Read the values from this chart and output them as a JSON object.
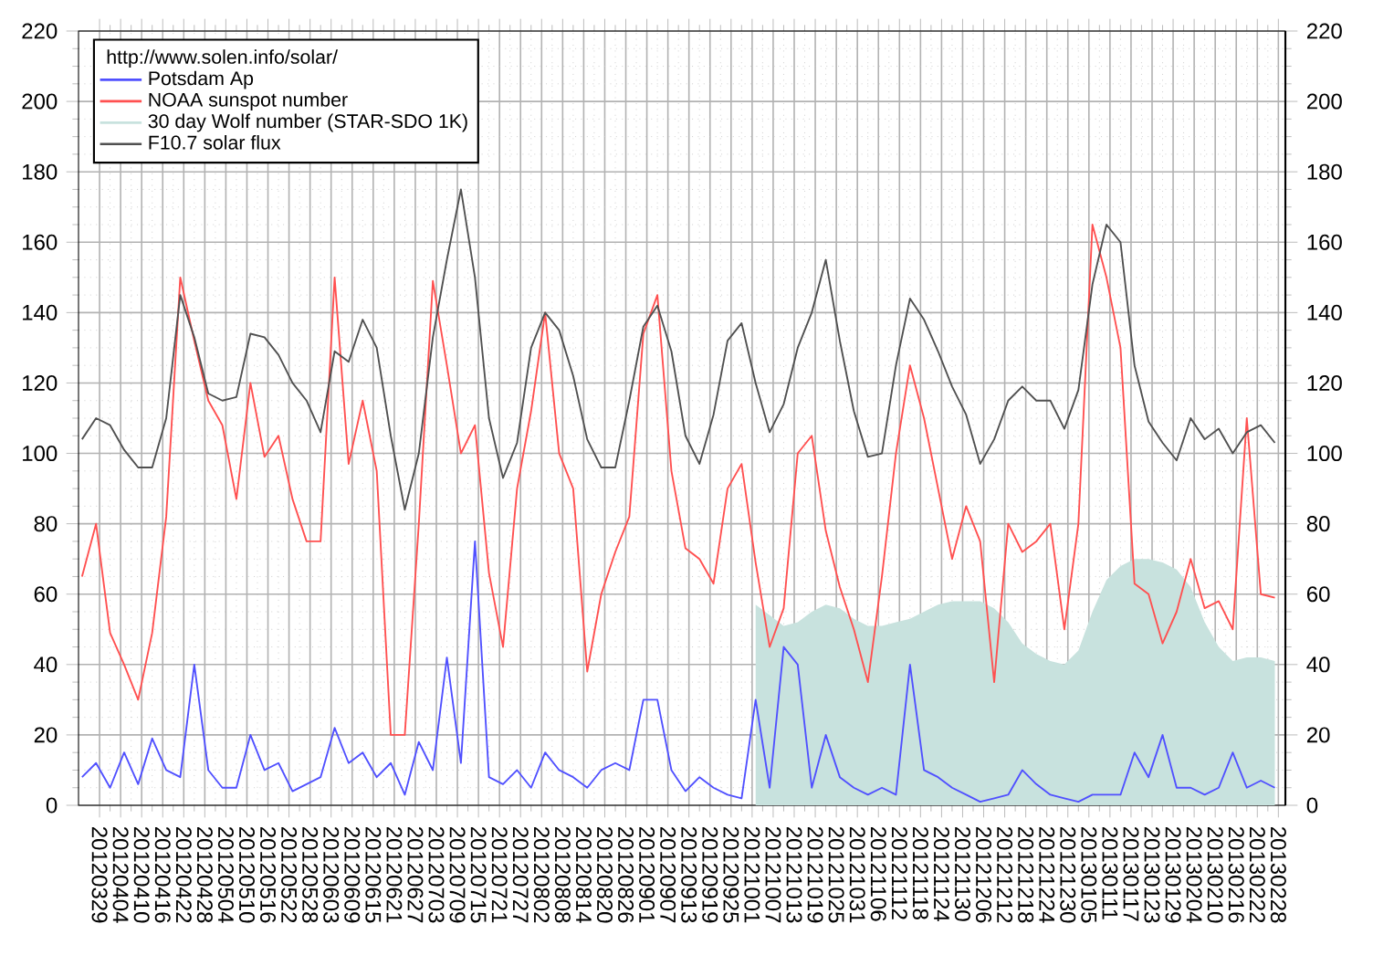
{
  "chart_data": {
    "type": "line",
    "legend_title": "http://www.solen.info/solar/",
    "legend": "top left",
    "grid": true,
    "x": [
      "2012-03-24",
      "2012-03-28",
      "2012-04-01",
      "2012-04-05",
      "2012-04-09",
      "2012-04-13",
      "2012-04-17",
      "2012-04-21",
      "2012-04-25",
      "2012-04-29",
      "2012-05-03",
      "2012-05-07",
      "2012-05-11",
      "2012-05-15",
      "2012-05-19",
      "2012-05-23",
      "2012-05-27",
      "2012-05-31",
      "2012-06-04",
      "2012-06-08",
      "2012-06-12",
      "2012-06-16",
      "2012-06-20",
      "2012-06-24",
      "2012-06-28",
      "2012-07-02",
      "2012-07-06",
      "2012-07-10",
      "2012-07-14",
      "2012-07-18",
      "2012-07-22",
      "2012-07-26",
      "2012-07-30",
      "2012-08-03",
      "2012-08-07",
      "2012-08-11",
      "2012-08-15",
      "2012-08-19",
      "2012-08-23",
      "2012-08-27",
      "2012-08-31",
      "2012-09-04",
      "2012-09-08",
      "2012-09-12",
      "2012-09-16",
      "2012-09-20",
      "2012-09-24",
      "2012-09-28",
      "2012-10-02",
      "2012-10-06",
      "2012-10-10",
      "2012-10-14",
      "2012-10-18",
      "2012-10-22",
      "2012-10-26",
      "2012-10-30",
      "2012-11-03",
      "2012-11-07",
      "2012-11-11",
      "2012-11-15",
      "2012-11-19",
      "2012-11-23",
      "2012-11-27",
      "2012-12-01",
      "2012-12-05",
      "2012-12-09",
      "2012-12-13",
      "2012-12-17",
      "2012-12-21",
      "2012-12-25",
      "2012-12-29",
      "2013-01-02",
      "2013-01-06",
      "2013-01-10",
      "2013-01-14",
      "2013-01-18",
      "2013-01-22",
      "2013-01-26",
      "2013-01-30",
      "2013-02-03",
      "2013-02-07",
      "2013-02-11",
      "2013-02-15",
      "2013-02-19",
      "2013-02-23",
      "2013-02-27"
    ],
    "series": [
      {
        "name": "Potsdam Ap",
        "color": "#5050ff",
        "values": [
          8,
          12,
          5,
          15,
          6,
          19,
          10,
          8,
          40,
          10,
          5,
          5,
          20,
          10,
          12,
          4,
          6,
          8,
          22,
          12,
          15,
          8,
          12,
          3,
          18,
          10,
          42,
          12,
          75,
          8,
          6,
          10,
          5,
          15,
          10,
          8,
          5,
          10,
          12,
          10,
          30,
          30,
          10,
          4,
          8,
          5,
          3,
          2,
          30,
          5,
          45,
          40,
          5,
          20,
          8,
          5,
          3,
          5,
          3,
          40,
          10,
          8,
          5,
          3,
          1,
          2,
          3,
          10,
          6,
          3,
          2,
          1,
          3,
          3,
          3,
          15,
          8,
          20,
          5,
          5,
          3,
          5,
          15,
          5,
          7,
          5
        ]
      },
      {
        "name": "NOAA sunspot number",
        "color": "#ff5050",
        "values": [
          65,
          80,
          49,
          40,
          30,
          49,
          82,
          150,
          132,
          115,
          108,
          87,
          120,
          99,
          105,
          87,
          75,
          75,
          150,
          97,
          115,
          95,
          20,
          20,
          80,
          149,
          125,
          100,
          108,
          66,
          45,
          90,
          112,
          140,
          100,
          90,
          38,
          60,
          72,
          82,
          134,
          145,
          95,
          73,
          70,
          63,
          90,
          97,
          69,
          45,
          56,
          100,
          105,
          78,
          62,
          50,
          35,
          65,
          100,
          125,
          110,
          90,
          70,
          85,
          75,
          35,
          80,
          72,
          75,
          80,
          50,
          80,
          165,
          150,
          130,
          63,
          60,
          46,
          55,
          70,
          56,
          58,
          50,
          110,
          60,
          59
        ]
      },
      {
        "name": "30 day Wolf number (STAR-SDO 1K)",
        "type": "area",
        "color": "#c8e2de",
        "values": [
          null,
          null,
          null,
          null,
          null,
          null,
          null,
          null,
          null,
          null,
          null,
          null,
          null,
          null,
          null,
          null,
          null,
          null,
          null,
          null,
          null,
          null,
          null,
          null,
          null,
          null,
          null,
          null,
          null,
          null,
          null,
          null,
          null,
          null,
          null,
          null,
          null,
          null,
          null,
          null,
          null,
          null,
          null,
          null,
          null,
          null,
          null,
          null,
          57,
          54,
          51,
          52,
          55,
          57,
          56,
          53,
          51,
          51,
          52,
          53,
          55,
          57,
          58,
          58,
          58,
          56,
          52,
          46,
          43,
          41,
          40,
          44,
          55,
          64,
          68,
          70,
          70,
          69,
          67,
          62,
          52,
          45,
          41,
          42,
          42,
          41
        ]
      },
      {
        "name": "F10.7 solar flux",
        "color": "#505050",
        "values": [
          104,
          110,
          108,
          101,
          96,
          96,
          110,
          145,
          133,
          117,
          115,
          116,
          134,
          133,
          128,
          120,
          115,
          106,
          129,
          126,
          138,
          130,
          105,
          84,
          100,
          133,
          155,
          175,
          150,
          110,
          93,
          103,
          130,
          140,
          135,
          122,
          104,
          96,
          96,
          115,
          136,
          142,
          129,
          105,
          97,
          111,
          132,
          137,
          120,
          106,
          114,
          130,
          140,
          155,
          132,
          112,
          99,
          100,
          125,
          144,
          138,
          129,
          119,
          111,
          97,
          104,
          115,
          119,
          115,
          115,
          107,
          118,
          148,
          165,
          160,
          125,
          109,
          103,
          98,
          110,
          104,
          107,
          100,
          106,
          108,
          103
        ]
      }
    ],
    "xlim": [
      "2012-03-23",
      "2013-03-02"
    ],
    "xticks": [
      {
        "value": "2012-03-29",
        "label": "20120329"
      },
      {
        "value": "2012-04-04",
        "label": "20120404"
      },
      {
        "value": "2012-04-10",
        "label": "20120410"
      },
      {
        "value": "2012-04-16",
        "label": "20120416"
      },
      {
        "value": "2012-04-22",
        "label": "20120422"
      },
      {
        "value": "2012-04-28",
        "label": "20120428"
      },
      {
        "value": "2012-05-04",
        "label": "20120504"
      },
      {
        "value": "2012-05-10",
        "label": "20120510"
      },
      {
        "value": "2012-05-16",
        "label": "20120516"
      },
      {
        "value": "2012-05-22",
        "label": "20120522"
      },
      {
        "value": "2012-05-28",
        "label": "20120528"
      },
      {
        "value": "2012-06-03",
        "label": "20120603"
      },
      {
        "value": "2012-06-09",
        "label": "20120609"
      },
      {
        "value": "2012-06-15",
        "label": "20120615"
      },
      {
        "value": "2012-06-21",
        "label": "20120621"
      },
      {
        "value": "2012-06-27",
        "label": "20120627"
      },
      {
        "value": "2012-07-03",
        "label": "20120703"
      },
      {
        "value": "2012-07-09",
        "label": "20120709"
      },
      {
        "value": "2012-07-15",
        "label": "20120715"
      },
      {
        "value": "2012-07-21",
        "label": "20120721"
      },
      {
        "value": "2012-07-27",
        "label": "20120727"
      },
      {
        "value": "2012-08-02",
        "label": "20120802"
      },
      {
        "value": "2012-08-08",
        "label": "20120808"
      },
      {
        "value": "2012-08-14",
        "label": "20120814"
      },
      {
        "value": "2012-08-20",
        "label": "20120820"
      },
      {
        "value": "2012-08-26",
        "label": "20120826"
      },
      {
        "value": "2012-09-01",
        "label": "20120901"
      },
      {
        "value": "2012-09-07",
        "label": "20120907"
      },
      {
        "value": "2012-09-13",
        "label": "20120913"
      },
      {
        "value": "2012-09-19",
        "label": "20120919"
      },
      {
        "value": "2012-09-25",
        "label": "20120925"
      },
      {
        "value": "2012-10-01",
        "label": "20121001"
      },
      {
        "value": "2012-10-07",
        "label": "20121007"
      },
      {
        "value": "2012-10-13",
        "label": "20121013"
      },
      {
        "value": "2012-10-19",
        "label": "20121019"
      },
      {
        "value": "2012-10-25",
        "label": "20121025"
      },
      {
        "value": "2012-10-31",
        "label": "20121031"
      },
      {
        "value": "2012-11-06",
        "label": "20121106"
      },
      {
        "value": "2012-11-12",
        "label": "20121112"
      },
      {
        "value": "2012-11-18",
        "label": "20121118"
      },
      {
        "value": "2012-11-24",
        "label": "20121124"
      },
      {
        "value": "2012-11-30",
        "label": "20121130"
      },
      {
        "value": "2012-12-06",
        "label": "20121206"
      },
      {
        "value": "2012-12-12",
        "label": "20121212"
      },
      {
        "value": "2012-12-18",
        "label": "20121218"
      },
      {
        "value": "2012-12-24",
        "label": "20121224"
      },
      {
        "value": "2012-12-30",
        "label": "20121230"
      },
      {
        "value": "2013-01-05",
        "label": "20130105"
      },
      {
        "value": "2013-01-11",
        "label": "20130111"
      },
      {
        "value": "2013-01-17",
        "label": "20130117"
      },
      {
        "value": "2013-01-23",
        "label": "20130123"
      },
      {
        "value": "2013-01-29",
        "label": "20130129"
      },
      {
        "value": "2013-02-04",
        "label": "20130204"
      },
      {
        "value": "2013-02-10",
        "label": "20130210"
      },
      {
        "value": "2013-02-16",
        "label": "20130216"
      },
      {
        "value": "2013-02-22",
        "label": "20130222"
      },
      {
        "value": "2013-02-28",
        "label": "20130228"
      }
    ],
    "ylim": [
      0,
      220
    ],
    "yticks": [
      0,
      20,
      40,
      60,
      80,
      100,
      120,
      140,
      160,
      180,
      200,
      220
    ],
    "y2lim": [
      0,
      220
    ],
    "y2ticks": [
      0,
      20,
      40,
      60,
      80,
      100,
      120,
      140,
      160,
      180,
      200,
      220
    ]
  }
}
